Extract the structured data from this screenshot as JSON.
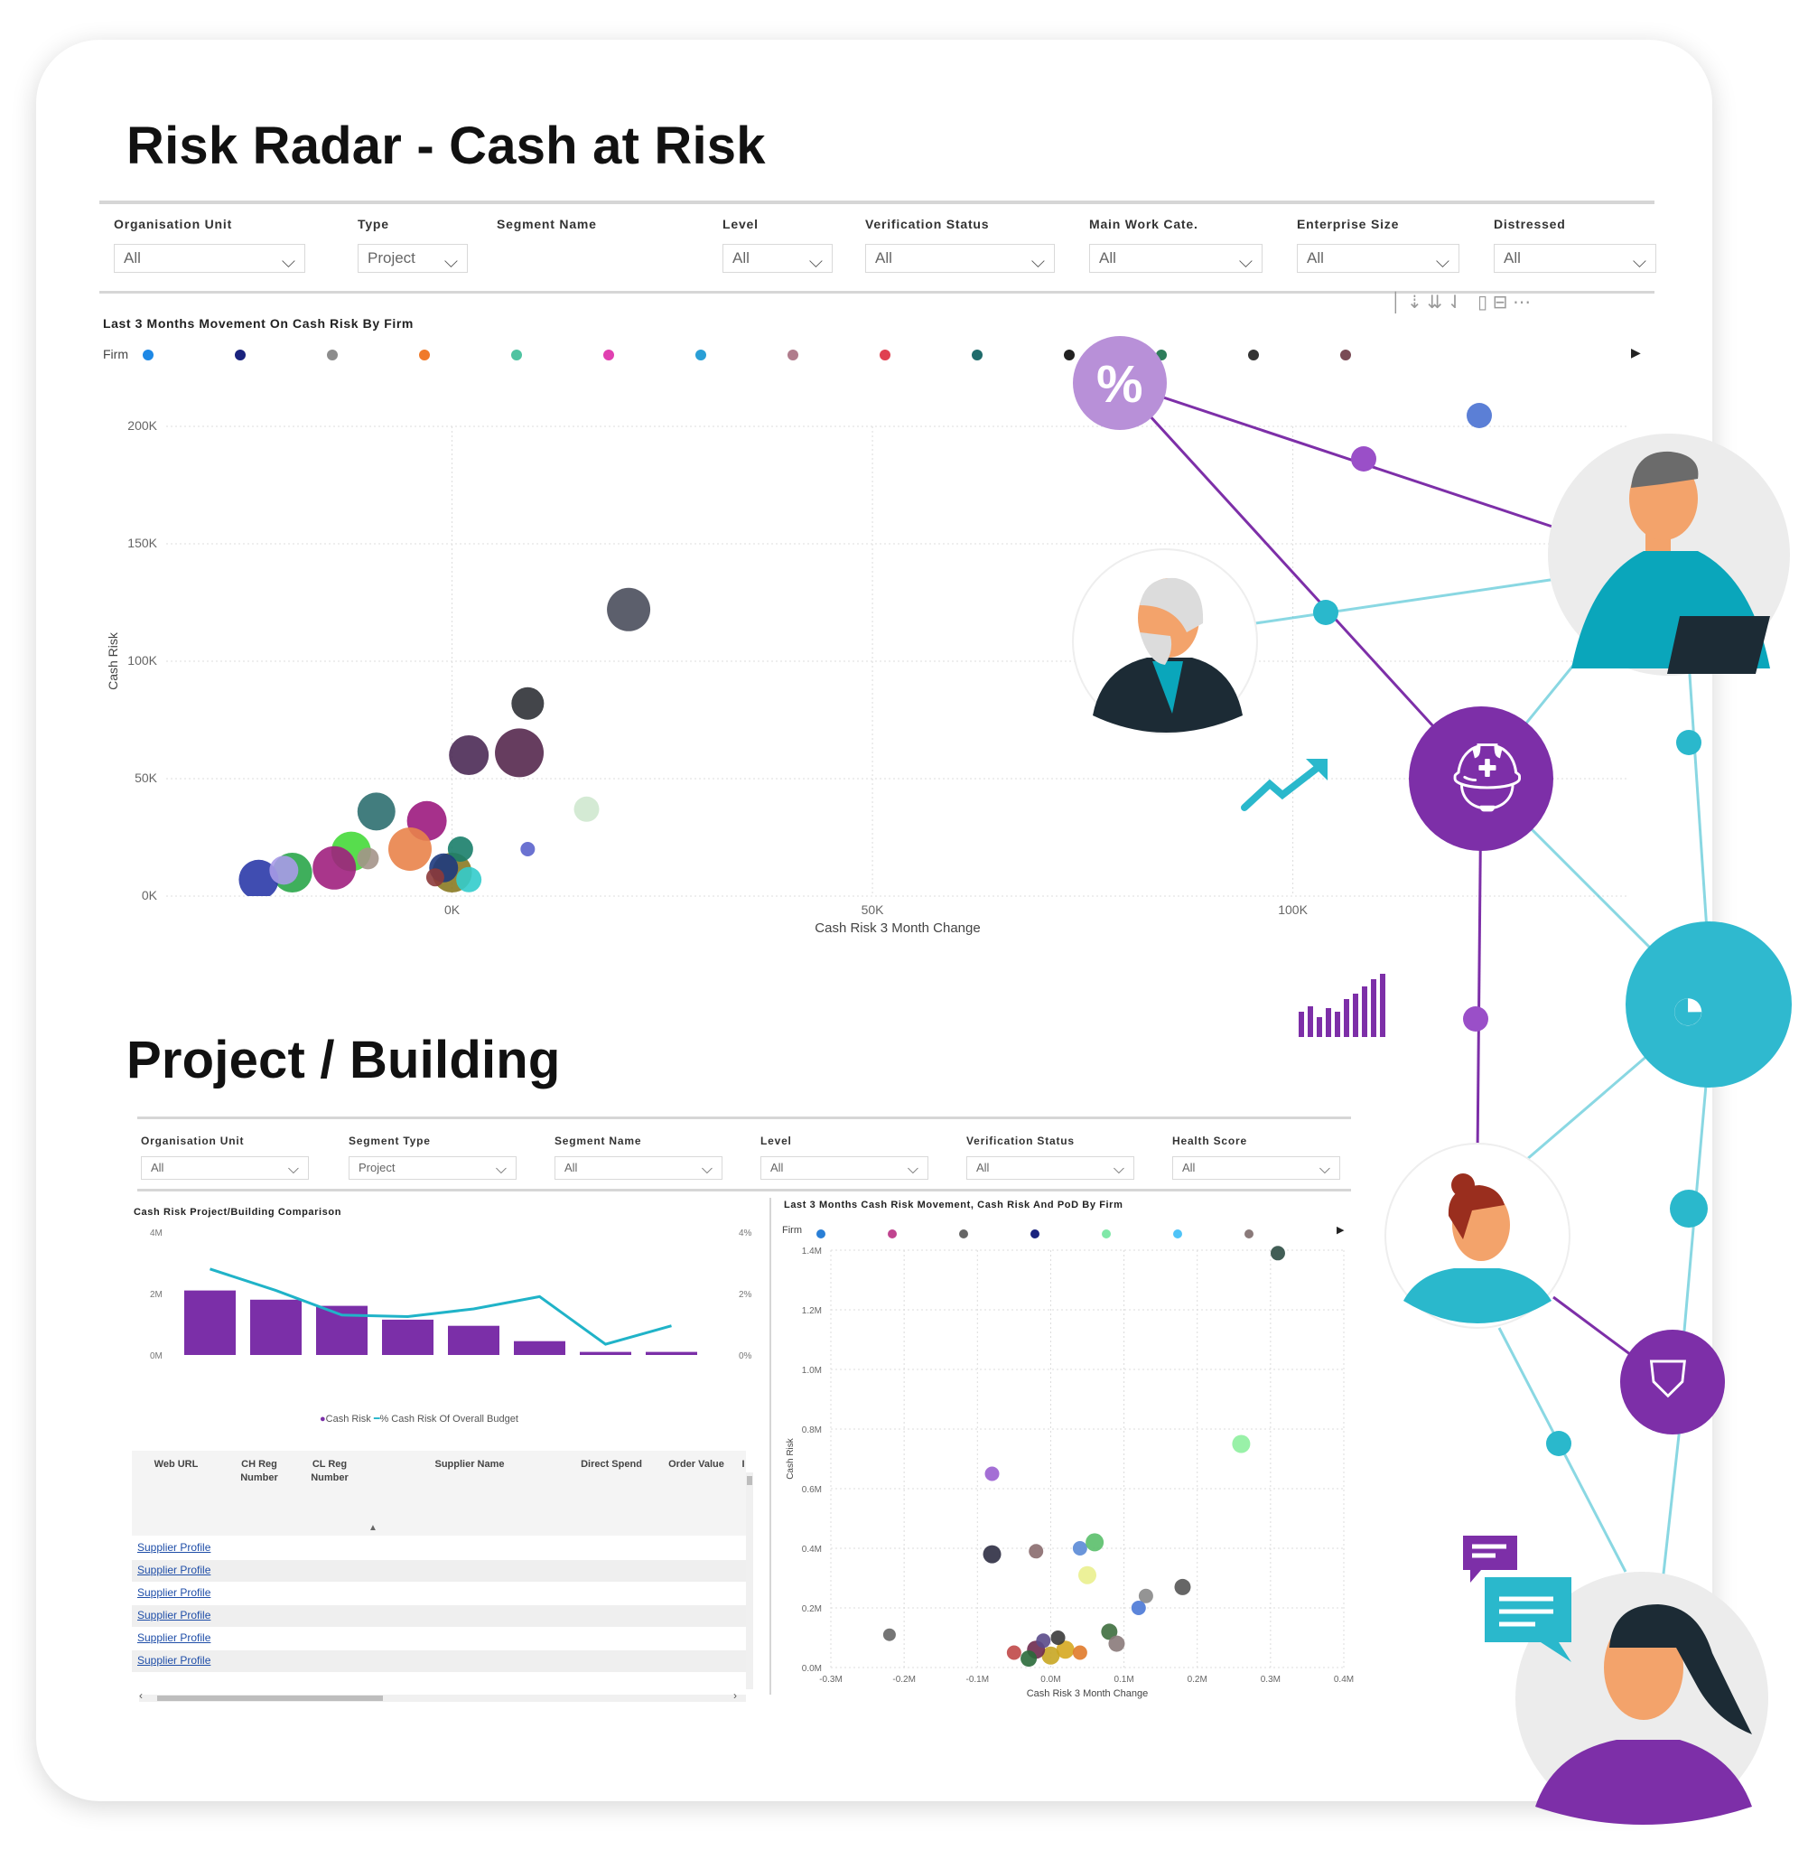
{
  "titles": {
    "cash_at_risk": "Risk Radar - Cash at Risk",
    "project_building": "Project / Building"
  },
  "filters_top": [
    {
      "label": "Organisation Unit",
      "value": "All"
    },
    {
      "label": "Type",
      "value": "Project"
    },
    {
      "label": "Segment Name",
      "value": ""
    },
    {
      "label": "Level",
      "value": "All"
    },
    {
      "label": "Verification Status",
      "value": "All"
    },
    {
      "label": "Main Work Cate.",
      "value": "All"
    },
    {
      "label": "Enterprise Size",
      "value": "All"
    },
    {
      "label": "Distressed",
      "value": "All"
    }
  ],
  "filters_bottom": [
    {
      "label": "Organisation Unit",
      "value": "All"
    },
    {
      "label": "Segment Type",
      "value": "Project"
    },
    {
      "label": "Segment Name",
      "value": "All"
    },
    {
      "label": "Level",
      "value": "All"
    },
    {
      "label": "Verification Status",
      "value": "All"
    },
    {
      "label": "Health Score",
      "value": "All"
    }
  ],
  "scatter_top": {
    "title": "Last 3 Months Movement On Cash Risk By Firm",
    "legend_label": "Firm",
    "legend_colors": [
      "#1e88e5",
      "#1a237e",
      "#8c8c8c",
      "#f07a2a",
      "#4fc3a1",
      "#e040b0",
      "#2a9fd6",
      "#b07c8c",
      "#e04050",
      "#1f6b6b",
      "#222222",
      "#2e7d5b",
      "#333333",
      "#7a4b55"
    ],
    "chart_data": {
      "type": "scatter",
      "title": "Last 3 Months Movement On Cash Risk By Firm",
      "xlabel": "Cash Risk 3 Month Change",
      "ylabel": "Cash Risk",
      "x_ticks": [
        "0K",
        "50K",
        "100K"
      ],
      "y_ticks": [
        "0K",
        "50K",
        "100K",
        "150K",
        "200K"
      ],
      "xlim": [
        -34000,
        140000
      ],
      "ylim": [
        0,
        200000
      ],
      "points": [
        {
          "x": 21000,
          "y": 122000,
          "r": 24,
          "color": "#4a4e5c"
        },
        {
          "x": 9000,
          "y": 82000,
          "r": 18,
          "color": "#2f3136"
        },
        {
          "x": 8000,
          "y": 61000,
          "r": 27,
          "color": "#55284e"
        },
        {
          "x": 2000,
          "y": 60000,
          "r": 22,
          "color": "#4b2a55"
        },
        {
          "x": 16000,
          "y": 37000,
          "r": 14,
          "color": "#cfe8cf"
        },
        {
          "x": 9000,
          "y": 20000,
          "r": 8,
          "color": "#5b63cc"
        },
        {
          "x": -3000,
          "y": 32000,
          "r": 22,
          "color": "#9c1a7e"
        },
        {
          "x": -9000,
          "y": 36000,
          "r": 21,
          "color": "#2e6f70"
        },
        {
          "x": -5000,
          "y": 20000,
          "r": 24,
          "color": "#e9834a"
        },
        {
          "x": -12000,
          "y": 19000,
          "r": 22,
          "color": "#45d93a"
        },
        {
          "x": -14000,
          "y": 12000,
          "r": 24,
          "color": "#a0207e"
        },
        {
          "x": -19000,
          "y": 10000,
          "r": 22,
          "color": "#2aa64a"
        },
        {
          "x": -23000,
          "y": 7000,
          "r": 22,
          "color": "#2b3aa8"
        },
        {
          "x": -20000,
          "y": 11000,
          "r": 16,
          "color": "#a89be8"
        },
        {
          "x": -10000,
          "y": 16000,
          "r": 12,
          "color": "#a4948a"
        },
        {
          "x": 0,
          "y": 10000,
          "r": 22,
          "color": "#8a7a22"
        },
        {
          "x": 1000,
          "y": 20000,
          "r": 14,
          "color": "#1a7e6a"
        },
        {
          "x": -1000,
          "y": 12000,
          "r": 16,
          "color": "#1d3a7e"
        },
        {
          "x": 2000,
          "y": 7000,
          "r": 14,
          "color": "#33cccc"
        },
        {
          "x": -2000,
          "y": 8000,
          "r": 10,
          "color": "#8c3a3a"
        }
      ]
    }
  },
  "combo": {
    "title": "Cash Risk Project/Building Comparison",
    "y_left_ticks": [
      "0M",
      "2M",
      "4M"
    ],
    "y_right_ticks": [
      "0%",
      "2%",
      "4%"
    ],
    "legend": [
      "Cash Risk",
      "% Cash Risk Of Overall Budget"
    ],
    "chart_data": {
      "type": "bar",
      "title": "Cash Risk Project/Building Comparison",
      "ylim": [
        0,
        4
      ],
      "y2lim": [
        0,
        4
      ],
      "series": [
        {
          "name": "Cash Risk",
          "values": [
            2.1,
            1.8,
            1.6,
            1.15,
            0.95,
            0.45,
            0.1,
            0.1
          ]
        },
        {
          "name": "% Cash Risk Of Overall Budget",
          "values": [
            2.8,
            2.1,
            1.3,
            1.25,
            1.5,
            1.9,
            0.35,
            0.95
          ]
        }
      ],
      "colors": [
        "#7b2fa8",
        "#20b3c8"
      ]
    }
  },
  "table": {
    "columns": [
      "Web URL",
      "CH Reg\nNumber",
      "CL Reg\nNumber",
      "Supplier Name",
      "Direct Spend",
      "Order Value",
      "I"
    ],
    "rows": [
      "Supplier Profile",
      "Supplier Profile",
      "Supplier Profile",
      "Supplier Profile",
      "Supplier Profile",
      "Supplier Profile"
    ]
  },
  "scatter_bottom": {
    "title": "Last 3 Months Cash Risk Movement, Cash Risk And PoD By Firm",
    "legend_label": "Firm",
    "legend_colors": [
      "#2a7fd6",
      "#c0448f",
      "#666666",
      "#1a237e",
      "#80e8a8",
      "#4fc3f7",
      "#8a7a7a"
    ],
    "chart_data": {
      "type": "scatter",
      "title": "Last 3 Months Cash Risk Movement, Cash Risk And PoD By Firm",
      "xlabel": "Cash Risk 3 Month Change",
      "ylabel": "Cash Risk",
      "x_ticks": [
        "-0.3M",
        "-0.2M",
        "-0.1M",
        "0.0M",
        "0.1M",
        "0.2M",
        "0.3M",
        "0.4M"
      ],
      "y_ticks": [
        "0.0M",
        "0.2M",
        "0.4M",
        "0.6M",
        "0.8M",
        "1.0M",
        "1.2M",
        "1.4M"
      ],
      "xlim": [
        -0.3,
        0.4
      ],
      "ylim": [
        0,
        1.4
      ],
      "points": [
        {
          "x": 0.31,
          "y": 1.39,
          "r": 8,
          "color": "#2e4d44"
        },
        {
          "x": 0.26,
          "y": 0.75,
          "r": 10,
          "color": "#8ef09e"
        },
        {
          "x": -0.08,
          "y": 0.65,
          "r": 8,
          "color": "#9a5fd0"
        },
        {
          "x": -0.08,
          "y": 0.38,
          "r": 10,
          "color": "#2e2e42"
        },
        {
          "x": -0.02,
          "y": 0.39,
          "r": 8,
          "color": "#8a6b6e"
        },
        {
          "x": 0.04,
          "y": 0.4,
          "r": 8,
          "color": "#5a8ad6"
        },
        {
          "x": 0.06,
          "y": 0.42,
          "r": 10,
          "color": "#5abf6a"
        },
        {
          "x": 0.05,
          "y": 0.31,
          "r": 10,
          "color": "#eaf08e"
        },
        {
          "x": 0.18,
          "y": 0.27,
          "r": 9,
          "color": "#555555"
        },
        {
          "x": 0.13,
          "y": 0.24,
          "r": 8,
          "color": "#888888"
        },
        {
          "x": 0.12,
          "y": 0.2,
          "r": 8,
          "color": "#4a78d6"
        },
        {
          "x": -0.22,
          "y": 0.11,
          "r": 7,
          "color": "#666666"
        },
        {
          "x": 0.08,
          "y": 0.12,
          "r": 9,
          "color": "#3e6e3e"
        },
        {
          "x": 0.09,
          "y": 0.08,
          "r": 9,
          "color": "#8a7a7a"
        },
        {
          "x": 0.02,
          "y": 0.06,
          "r": 10,
          "color": "#d6a820"
        },
        {
          "x": 0.0,
          "y": 0.04,
          "r": 10,
          "color": "#c8a622"
        },
        {
          "x": -0.02,
          "y": 0.06,
          "r": 10,
          "color": "#6e2a4e"
        },
        {
          "x": -0.03,
          "y": 0.03,
          "r": 9,
          "color": "#2a6a3a"
        },
        {
          "x": -0.05,
          "y": 0.05,
          "r": 8,
          "color": "#c04848"
        },
        {
          "x": -0.01,
          "y": 0.09,
          "r": 8,
          "color": "#5a4a8a"
        },
        {
          "x": 0.01,
          "y": 0.1,
          "r": 8,
          "color": "#3a3a3a"
        },
        {
          "x": 0.04,
          "y": 0.05,
          "r": 8,
          "color": "#e07a2a"
        }
      ]
    }
  },
  "decor": {
    "network_purple": "#7d2fa8",
    "network_teal": "#2ab8cc",
    "icons": [
      "percent-icon",
      "hard-hat-gear-icon",
      "gauge-icon",
      "shield-check-icon",
      "chat-icon",
      "trend-arrow-icon",
      "bar-bars-icon"
    ]
  }
}
